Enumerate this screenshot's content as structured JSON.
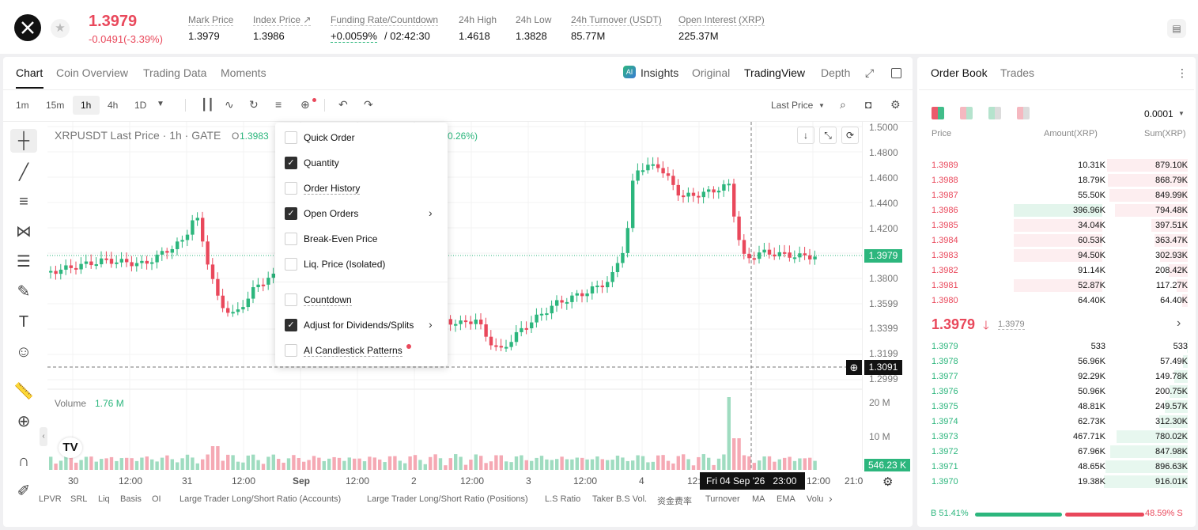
{
  "header": {
    "price": "1.3979",
    "change": "-0.0491(-3.39%)",
    "stats": [
      {
        "label": "Mark Price",
        "value": "1.3979"
      },
      {
        "label": "Index Price ↗",
        "value": "1.3986"
      },
      {
        "label": "Funding Rate/Countdown",
        "value": "+0.0059%",
        "value2": "/ 02:42:30"
      },
      {
        "label": "24h High",
        "value": "1.4618"
      },
      {
        "label": "24h Low",
        "value": "1.3828"
      },
      {
        "label": "24h Turnover (USDT)",
        "value": "85.77M"
      },
      {
        "label": "Open Interest (XRP)",
        "value": "225.37M"
      }
    ]
  },
  "chart_tabs": {
    "left": [
      "Chart",
      "Coin Overview",
      "Trading Data",
      "Moments"
    ],
    "insights": "Insights",
    "original": "Original",
    "tradingview": "TradingView",
    "depth": "Depth"
  },
  "timeframes": [
    "1m",
    "15m",
    "1h",
    "4h",
    "1D"
  ],
  "last_price_select": "Last Price",
  "chart": {
    "symbol": "XRPUSDT Last Price · 1h · GATE",
    "o_label": "O",
    "o_value": "1.3983",
    "chg_fragment": "0.26%)",
    "price_ticks": [
      "1.5000",
      "1.4800",
      "1.4600",
      "1.4400",
      "1.4200",
      "1.3800",
      "1.3599",
      "1.3399",
      "1.3199",
      "1.2999"
    ],
    "current_price": "1.3979",
    "cursor_price": "1.3091",
    "volume_label": "Volume",
    "volume_value": "1.76 M",
    "volume_ticks": [
      "20 M",
      "10 M"
    ],
    "volume_current": "546.23 K",
    "x_ticks": [
      "30",
      "12:00",
      "31",
      "12:00",
      "Sep",
      "12:00",
      "2",
      "12:00",
      "3",
      "12:00",
      "4",
      "12:",
      "12:00",
      "21:0"
    ],
    "crosshair_time": "Fri 04 Sep '26   23:00"
  },
  "menu": [
    {
      "label": "Quick Order",
      "checked": false
    },
    {
      "label": "Quantity",
      "checked": true
    },
    {
      "label": "Order History",
      "checked": false
    },
    {
      "label": "Open Orders",
      "checked": true
    },
    {
      "label": "Break-Even Price",
      "checked": false
    },
    {
      "label": "Liq. Price (Isolated)",
      "checked": false
    },
    {
      "label": "Countdown",
      "checked": false
    },
    {
      "label": "Adjust for Dividends/Splits",
      "checked": true
    },
    {
      "label": "AI Candlestick Patterns",
      "checked": false
    }
  ],
  "indicators": [
    "LPVR",
    "SRL",
    "Liq",
    "Basis",
    "OI",
    "Large Trader Long/Short Ratio (Accounts)",
    "Large Trader Long/Short Ratio (Positions)",
    "L.S Ratio",
    "Taker B.S Vol.",
    "资金费率",
    "Turnover",
    "MA",
    "EMA",
    "Volu"
  ],
  "orderbook": {
    "tabs": [
      "Order Book",
      "Trades"
    ],
    "precision": "0.0001",
    "headers": [
      "Price",
      "Amount(XRP)",
      "Sum(XRP)"
    ],
    "asks": [
      {
        "price": "1.3989",
        "amount": "10.31K",
        "sum": "879.10K",
        "sumfrac": 0.96,
        "amtfrac": 0
      },
      {
        "price": "1.3988",
        "amount": "18.79K",
        "sum": "868.79K",
        "sumfrac": 0.95,
        "amtfrac": 0
      },
      {
        "price": "1.3987",
        "amount": "55.50K",
        "sum": "849.99K",
        "sumfrac": 0.93,
        "amtfrac": 0
      },
      {
        "price": "1.3986",
        "amount": "396.96K",
        "sum": "794.48K",
        "sumfrac": 0.87,
        "amtfrac": 0.64,
        "hl": true
      },
      {
        "price": "1.3985",
        "amount": "34.04K",
        "sum": "397.51K",
        "sumfrac": 0.43,
        "amtfrac": 0.34
      },
      {
        "price": "1.3984",
        "amount": "60.53K",
        "sum": "363.47K",
        "sumfrac": 0.4,
        "amtfrac": 0.34
      },
      {
        "price": "1.3983",
        "amount": "94.50K",
        "sum": "302.93K",
        "sumfrac": 0.33,
        "amtfrac": 0.34
      },
      {
        "price": "1.3982",
        "amount": "91.14K",
        "sum": "208.42K",
        "sumfrac": 0.23,
        "amtfrac": 0
      },
      {
        "price": "1.3981",
        "amount": "52.87K",
        "sum": "117.27K",
        "sumfrac": 0.13,
        "amtfrac": 0.34
      },
      {
        "price": "1.3980",
        "amount": "64.40K",
        "sum": "64.40K",
        "sumfrac": 0.07,
        "amtfrac": 0
      }
    ],
    "mid": {
      "price": "1.3979",
      "mark": "1.3979"
    },
    "bids": [
      {
        "price": "1.3979",
        "amount": "533",
        "sum": "533",
        "sumfrac": 0.01
      },
      {
        "price": "1.3978",
        "amount": "56.96K",
        "sum": "57.49K",
        "sumfrac": 0.06
      },
      {
        "price": "1.3977",
        "amount": "92.29K",
        "sum": "149.78K",
        "sumfrac": 0.16
      },
      {
        "price": "1.3976",
        "amount": "50.96K",
        "sum": "200.75K",
        "sumfrac": 0.22
      },
      {
        "price": "1.3975",
        "amount": "48.81K",
        "sum": "249.57K",
        "sumfrac": 0.27
      },
      {
        "price": "1.3974",
        "amount": "62.73K",
        "sum": "312.30K",
        "sumfrac": 0.34
      },
      {
        "price": "1.3973",
        "amount": "467.71K",
        "sum": "780.02K",
        "sumfrac": 0.85
      },
      {
        "price": "1.3972",
        "amount": "67.96K",
        "sum": "847.98K",
        "sumfrac": 0.92
      },
      {
        "price": "1.3971",
        "amount": "48.65K",
        "sum": "896.63K",
        "sumfrac": 0.98
      },
      {
        "price": "1.3970",
        "amount": "19.38K",
        "sum": "916.01K",
        "sumfrac": 1.0
      }
    ],
    "buy_pct": "B 51.41%",
    "sell_pct": "48.59% S",
    "buy_frac": 0.5141
  },
  "colors": {
    "up": "#2cb67d",
    "down": "#e9485b"
  }
}
